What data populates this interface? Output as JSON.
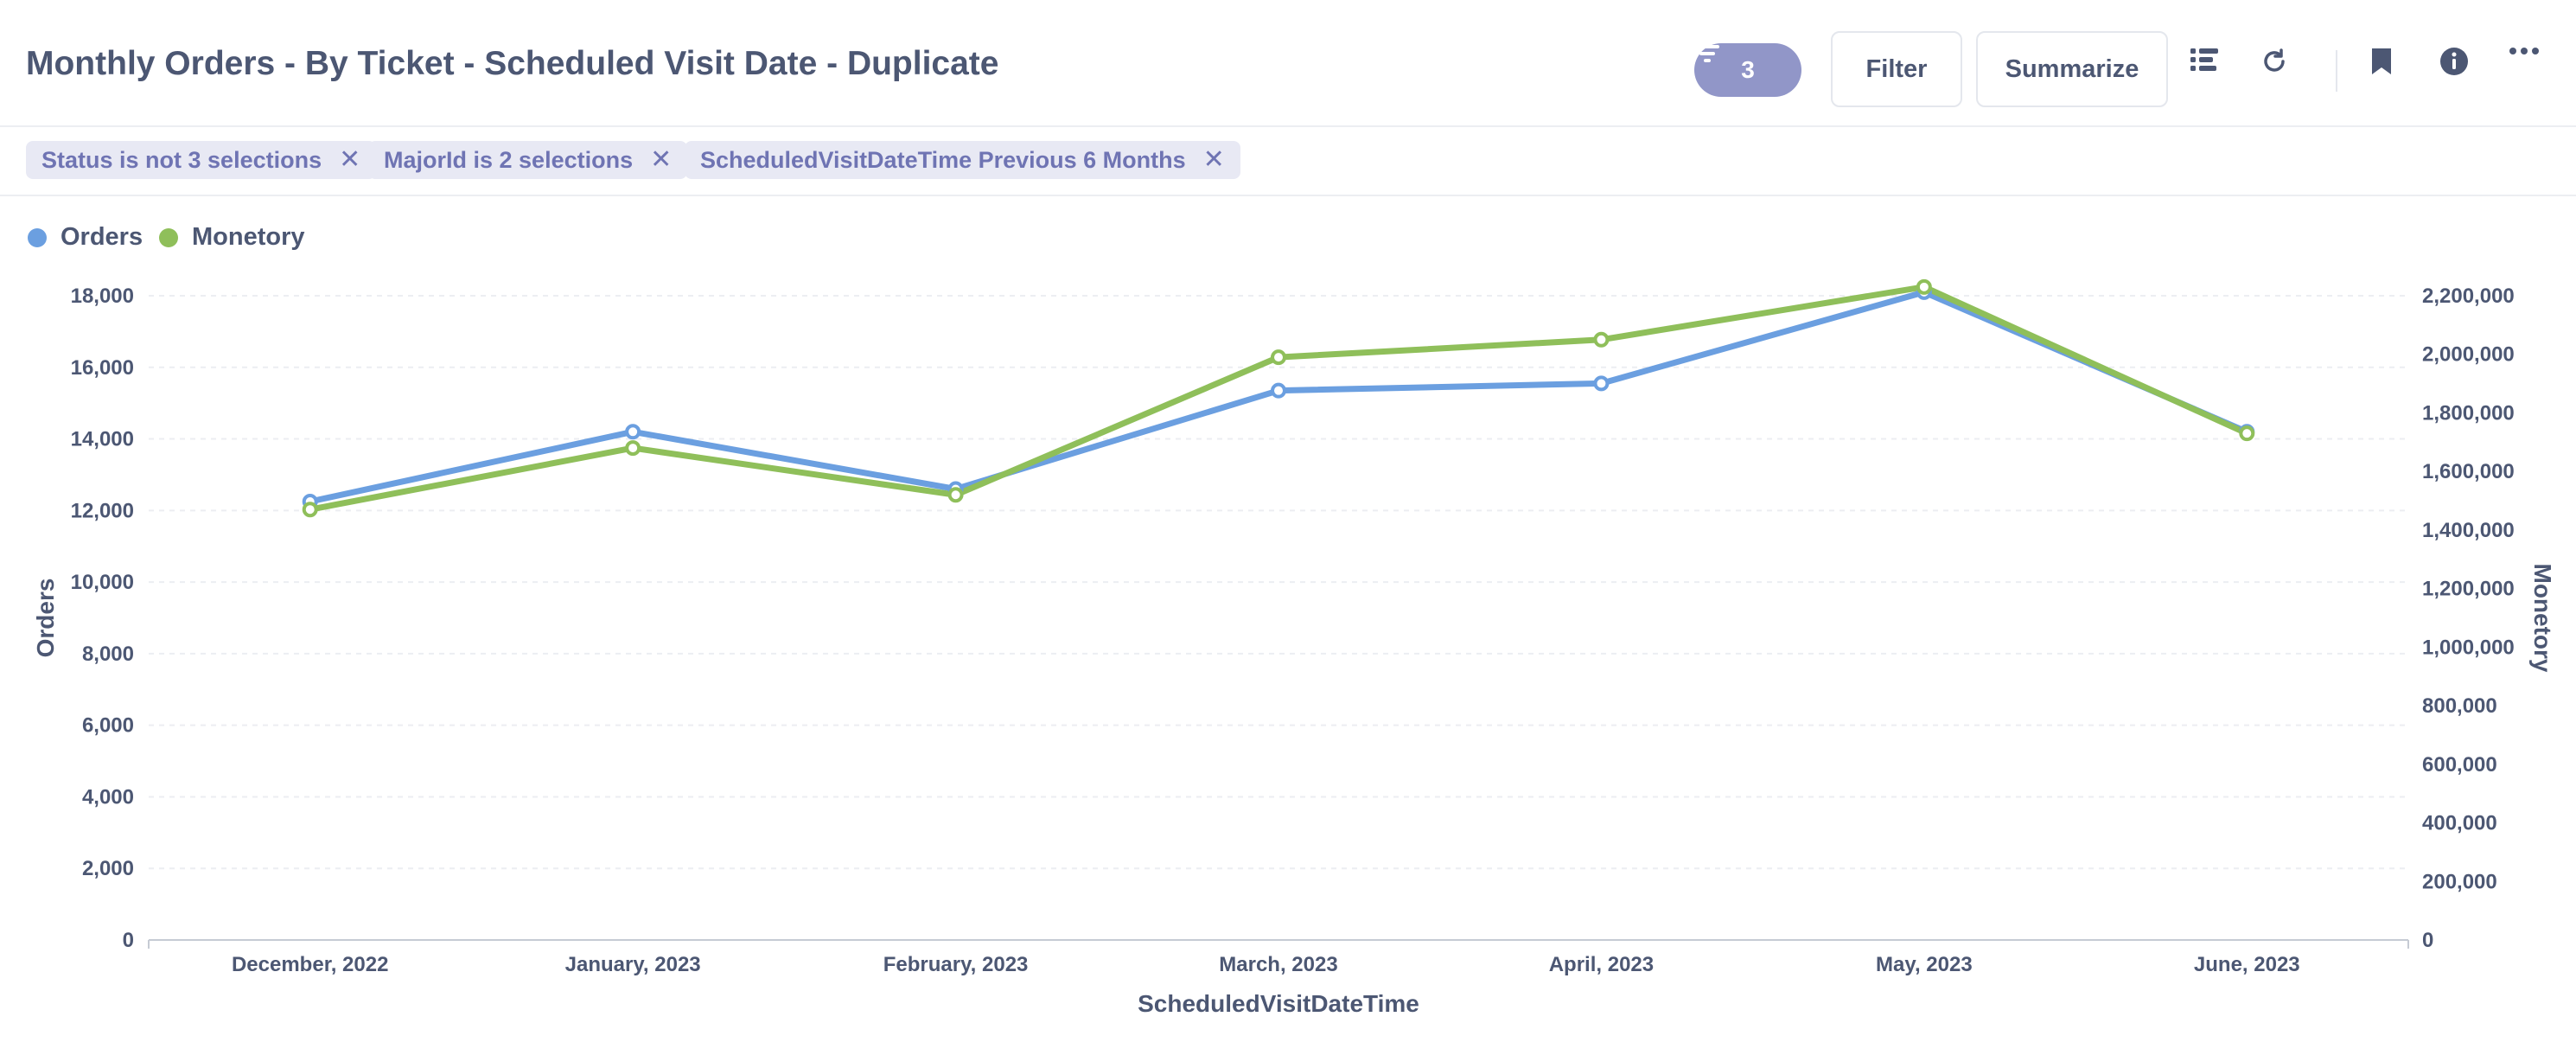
{
  "header": {
    "title": "Monthly Orders - By Ticket - Scheduled Visit Date - Duplicate",
    "filter_count": "3",
    "filter_label": "Filter",
    "summarize_label": "Summarize"
  },
  "filters": [
    {
      "label": "Status is not 3 selections"
    },
    {
      "label": "MajorId is 2 selections"
    },
    {
      "label": "ScheduledVisitDateTime Previous 6 Months"
    }
  ],
  "colors": {
    "orders": "#6b9fe0",
    "monetory": "#8fbf5a",
    "accent": "#9196c8"
  },
  "chart_data": {
    "type": "line",
    "x": [
      "December, 2022",
      "January, 2023",
      "February, 2023",
      "March, 2023",
      "April, 2023",
      "May, 2023",
      "June, 2023"
    ],
    "xlabel": "ScheduledVisitDateTime",
    "y_left": {
      "label": "Orders",
      "ticks": [
        "0",
        "2,000",
        "4,000",
        "6,000",
        "8,000",
        "10,000",
        "12,000",
        "14,000",
        "16,000",
        "18,000"
      ],
      "range": [
        0,
        18000
      ]
    },
    "y_right": {
      "label": "Monetory",
      "ticks": [
        "0",
        "200,000",
        "400,000",
        "600,000",
        "800,000",
        "1,000,000",
        "1,200,000",
        "1,400,000",
        "1,600,000",
        "1,800,000",
        "2,000,000",
        "2,200,000"
      ],
      "range": [
        0,
        2200000
      ]
    },
    "series": [
      {
        "name": "Orders",
        "axis": "left",
        "values": [
          12250,
          14200,
          12600,
          15350,
          15550,
          18100,
          14200
        ]
      },
      {
        "name": "Monetory",
        "axis": "right",
        "values": [
          1470000,
          1680000,
          1520000,
          1990000,
          2050000,
          2230000,
          1730000
        ]
      }
    ],
    "grid": true,
    "legend": "top-left"
  }
}
